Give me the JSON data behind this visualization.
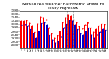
{
  "title": "Milwaukee Weather Barometric Pressure",
  "subtitle": "Daily High/Low",
  "days": [
    1,
    2,
    3,
    4,
    5,
    6,
    7,
    8,
    9,
    10,
    11,
    12,
    13,
    14,
    15,
    16,
    17,
    18,
    19,
    20,
    21,
    22,
    23,
    24,
    25,
    26,
    27,
    28,
    29,
    30,
    31
  ],
  "highs": [
    30.18,
    30.21,
    30.22,
    30.08,
    29.9,
    29.55,
    30.02,
    30.45,
    30.41,
    30.28,
    29.8,
    29.48,
    29.22,
    29.38,
    29.62,
    30.1,
    30.38,
    30.55,
    30.52,
    30.28,
    30.1,
    29.88,
    29.75,
    29.95,
    30.12,
    29.8,
    29.55,
    29.72,
    29.92,
    30.05,
    29.98
  ],
  "lows": [
    29.95,
    29.98,
    29.92,
    29.72,
    29.48,
    29.2,
    29.62,
    30.08,
    30.1,
    29.95,
    29.42,
    29.1,
    28.92,
    29.0,
    29.3,
    29.78,
    30.05,
    30.22,
    30.2,
    29.95,
    29.72,
    29.48,
    29.42,
    29.6,
    29.8,
    29.42,
    29.2,
    29.42,
    29.58,
    29.72,
    29.68
  ],
  "high_color": "#ff0000",
  "low_color": "#0000cc",
  "ylim_min": 28.6,
  "ylim_max": 30.8,
  "yticks": [
    28.8,
    29.0,
    29.2,
    29.4,
    29.6,
    29.8,
    30.0,
    30.2,
    30.4,
    30.6,
    30.8
  ],
  "ytick_labels": [
    "28.80",
    "29.00",
    "29.20",
    "29.40",
    "29.60",
    "29.80",
    "30.00",
    "30.20",
    "30.40",
    "30.60",
    "30.80"
  ],
  "dashed_lines": [
    17.5,
    19.5
  ],
  "bg_color": "#ffffff",
  "title_fontsize": 4.2,
  "tick_fontsize": 2.8,
  "bar_width": 0.4,
  "dot_color_high": "#ff0000",
  "dot_color_low": "#0000cc"
}
